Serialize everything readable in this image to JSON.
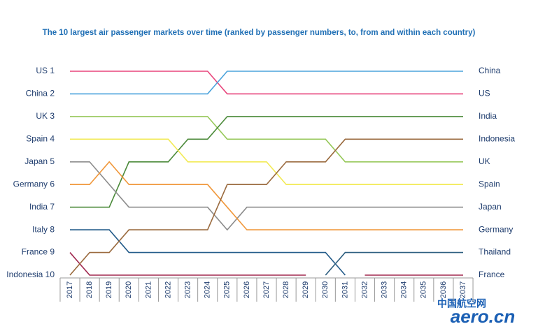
{
  "chart_data": {
    "type": "bump",
    "title": "The 10 largest air passenger markets over time (ranked by passenger numbers, to, from and within each country)",
    "categories": [
      "2017",
      "2018",
      "2019",
      "2020",
      "2021",
      "2022",
      "2023",
      "2024",
      "2025",
      "2026",
      "2027",
      "2028",
      "2029",
      "2030",
      "2031",
      "2032",
      "2033",
      "2034",
      "2035",
      "2036",
      "2037"
    ],
    "ylim": [
      1,
      10
    ],
    "y_reversed": true,
    "yticks": [
      {
        "value": 1,
        "label": "US  1"
      },
      {
        "value": 2,
        "label": "China  2"
      },
      {
        "value": 3,
        "label": "UK  3"
      },
      {
        "value": 4,
        "label": "Spain  4"
      },
      {
        "value": 5,
        "label": "Japan  5"
      },
      {
        "value": 6,
        "label": "Germany  6"
      },
      {
        "value": 7,
        "label": "India  7"
      },
      {
        "value": 8,
        "label": "Italy  8"
      },
      {
        "value": 9,
        "label": "France  9"
      },
      {
        "value": 10,
        "label": "Indonesia  10"
      }
    ],
    "y2ticks": [
      {
        "value": 1,
        "label": "China"
      },
      {
        "value": 2,
        "label": "US"
      },
      {
        "value": 3,
        "label": "India"
      },
      {
        "value": 4,
        "label": "Indonesia"
      },
      {
        "value": 5,
        "label": "UK"
      },
      {
        "value": 6,
        "label": "Spain"
      },
      {
        "value": 7,
        "label": "Japan"
      },
      {
        "value": 8,
        "label": "Germany"
      },
      {
        "value": 9,
        "label": "Thailand"
      },
      {
        "value": 10,
        "label": "France"
      }
    ],
    "series": [
      {
        "name": "US",
        "color": "#e8457c",
        "values": [
          1,
          1,
          1,
          1,
          1,
          1,
          1,
          1,
          2,
          2,
          2,
          2,
          2,
          2,
          2,
          2,
          2,
          2,
          2,
          2,
          2
        ]
      },
      {
        "name": "China",
        "color": "#4ba3dc",
        "values": [
          2,
          2,
          2,
          2,
          2,
          2,
          2,
          2,
          1,
          1,
          1,
          1,
          1,
          1,
          1,
          1,
          1,
          1,
          1,
          1,
          1
        ]
      },
      {
        "name": "UK",
        "color": "#97c85a",
        "values": [
          3,
          3,
          3,
          3,
          3,
          3,
          3,
          3,
          4,
          4,
          4,
          4,
          4,
          4,
          5,
          5,
          5,
          5,
          5,
          5,
          5
        ]
      },
      {
        "name": "India",
        "color": "#4b8a3a",
        "values": [
          7,
          7,
          7,
          5,
          5,
          5,
          4,
          4,
          3,
          3,
          3,
          3,
          3,
          3,
          3,
          3,
          3,
          3,
          3,
          3,
          3
        ]
      },
      {
        "name": "Spain",
        "color": "#f2ea55",
        "values": [
          4,
          4,
          4,
          4,
          4,
          4,
          5,
          5,
          5,
          5,
          5,
          6,
          6,
          6,
          6,
          6,
          6,
          6,
          6,
          6,
          6
        ]
      },
      {
        "name": "Japan",
        "color": "#8c8c8c",
        "values": [
          5,
          5,
          6,
          7,
          7,
          7,
          7,
          7,
          8,
          7,
          7,
          7,
          7,
          7,
          7,
          7,
          7,
          7,
          7,
          7,
          7
        ]
      },
      {
        "name": "Germany",
        "color": "#f0973a",
        "values": [
          6,
          6,
          5,
          6,
          6,
          6,
          6,
          6,
          7,
          8,
          8,
          8,
          8,
          8,
          8,
          8,
          8,
          8,
          8,
          8,
          8
        ]
      },
      {
        "name": "Italy",
        "color": "#245c8a",
        "values": [
          8,
          8,
          8,
          9,
          9,
          9,
          9,
          9,
          9,
          9,
          9,
          9,
          9,
          9,
          10,
          null,
          null,
          null,
          null,
          null,
          null
        ]
      },
      {
        "name": "Thailand",
        "color": "#2e5f80",
        "values": [
          null,
          null,
          null,
          null,
          null,
          null,
          null,
          null,
          null,
          null,
          null,
          null,
          null,
          10,
          9,
          9,
          9,
          9,
          9,
          9,
          9
        ]
      },
      {
        "name": "France",
        "color": "#a0284f",
        "values": [
          9,
          10,
          10,
          10,
          10,
          10,
          10,
          10,
          10,
          10,
          10,
          10,
          10,
          null,
          null,
          10,
          10,
          10,
          10,
          10,
          10
        ]
      },
      {
        "name": "Indonesia",
        "color": "#9a6a3e",
        "values": [
          10,
          9,
          9,
          8,
          8,
          8,
          8,
          8,
          6,
          6,
          6,
          5,
          5,
          5,
          4,
          4,
          4,
          4,
          4,
          4,
          4
        ]
      }
    ]
  },
  "watermark": "中国航空网",
  "watermark_site": "aero.cn"
}
